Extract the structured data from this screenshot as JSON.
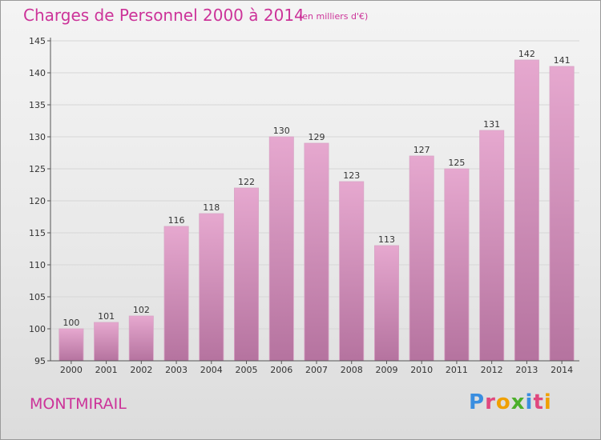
{
  "page": {
    "title": "Charges de Personnel 2000 à 2014",
    "subtitle": "(en milliers d'€)",
    "commune": "MONTMIRAIL",
    "brand": "Proxiti"
  },
  "colors": {
    "accent": "#cc3399",
    "bar_top": "#e6a8cf",
    "bar_bottom": "#b5739f",
    "axis": "#555555",
    "grid": "#d6d6d6",
    "brand_letters": [
      "#3a8ee0",
      "#e0487e",
      "#f0a000",
      "#4caf2a",
      "#3a8ee0",
      "#e0487e",
      "#f0a000"
    ]
  },
  "chart_data": {
    "type": "bar",
    "title": "Charges de Personnel 2000 à 2014",
    "subtitle": "(en milliers d'€)",
    "categories": [
      "2000",
      "2001",
      "2002",
      "2003",
      "2004",
      "2005",
      "2006",
      "2007",
      "2008",
      "2009",
      "2010",
      "2011",
      "2012",
      "2013",
      "2014"
    ],
    "values": [
      100,
      101,
      102,
      116,
      118,
      122,
      130,
      129,
      123,
      113,
      127,
      125,
      131,
      142,
      141
    ],
    "ylim": [
      95,
      145
    ],
    "yticks": [
      95,
      100,
      105,
      110,
      115,
      120,
      125,
      130,
      135,
      140,
      145
    ],
    "grid": true,
    "data_labels": true
  }
}
